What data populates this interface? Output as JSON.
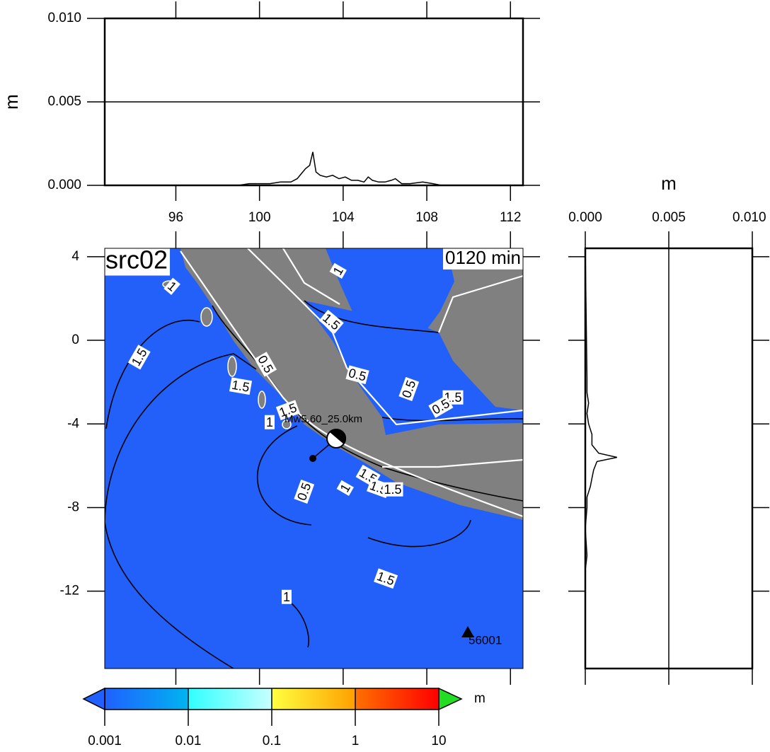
{
  "chart_data": [
    {
      "type": "line",
      "ylabel": "m",
      "xlim": [
        92.6,
        112.6
      ],
      "ylim": [
        0,
        0.01
      ],
      "xticks": [
        96,
        100,
        104,
        108,
        112
      ],
      "yticks": [
        {
          "value": 0,
          "label": "0.000"
        },
        {
          "value": 0.005,
          "label": "0.005"
        },
        {
          "value": 0.01,
          "label": "0.010"
        }
      ],
      "grid": true,
      "x": [
        92.6,
        99,
        99.5,
        100,
        100.5,
        101,
        101.5,
        101.8,
        102,
        102.2,
        102.4,
        102.55,
        102.7,
        102.9,
        103.2,
        103.5,
        103.8,
        104.1,
        104.4,
        104.7,
        105,
        105.2,
        105.4,
        105.7,
        106,
        106.3,
        106.5,
        106.8,
        107.2,
        107.8,
        108.3,
        108.7,
        112.6
      ],
      "series": [
        {
          "color": "#000000",
          "values": [
            0,
            0,
            0.0001,
            0.0001,
            0.0001,
            0.0002,
            0.0002,
            0.0004,
            0.0007,
            0.001,
            0.0012,
            0.002,
            0.0008,
            0.0006,
            0.0005,
            0.0006,
            0.0004,
            0.0005,
            0.0003,
            0.0003,
            0.0002,
            0.0005,
            0.0003,
            0.0002,
            0.0002,
            0.0003,
            0.0004,
            0.0001,
            0.0001,
            0.0002,
            0.0001,
            0,
            0
          ]
        }
      ]
    },
    {
      "type": "map",
      "title": "src02",
      "time": "0120 min",
      "source": "Mw5.60_25.0km",
      "station": "56001",
      "xlim": [
        92.6,
        112.6
      ],
      "ylim": [
        -15.7,
        4.4
      ],
      "xticks": [
        96,
        100,
        104,
        108,
        112
      ],
      "yticks": [
        4,
        0,
        -4,
        -8,
        -12
      ],
      "color": "#2360fa",
      "land_color": "#808080",
      "contour_labels": [
        "1",
        "1.5",
        "0.5",
        "1.5",
        "1.5",
        "1",
        "1",
        "1.5",
        "0.5",
        "0.5",
        "1.5",
        "0.5",
        "0.5",
        "1",
        "1.5",
        "1.5",
        "1.5",
        "1.5",
        "1"
      ]
    },
    {
      "type": "line",
      "orientation": "vertical",
      "xlabel": "m",
      "xlim": [
        0,
        0.01
      ],
      "ylim": [
        -15.7,
        4.4
      ],
      "xticks": [
        {
          "value": 0,
          "label": "0.000"
        },
        {
          "value": 0.005,
          "label": "0.005"
        },
        {
          "value": 0.01,
          "label": "0.010"
        }
      ],
      "yticks": [
        4,
        0,
        -4,
        -8,
        -12
      ],
      "grid": true,
      "y": [
        4.4,
        -1.8,
        -2.5,
        -3,
        -3.5,
        -4,
        -4.5,
        -5,
        -5.4,
        -5.6,
        -5.8,
        -6.2,
        -6.6,
        -7,
        -7.5,
        -8,
        -9,
        -10.3,
        -11,
        -15.7
      ],
      "series": [
        {
          "color": "#000000",
          "values": [
            0,
            0.0001,
            0.0001,
            0.0002,
            0.0001,
            0.0002,
            0.0004,
            0.0004,
            0.0008,
            0.0019,
            0.0007,
            0.0005,
            0.0004,
            0.0003,
            0.0001,
            0.0001,
            0,
            0.0001,
            0,
            0
          ]
        }
      ]
    },
    {
      "type": "colorbar",
      "label": "m",
      "log": true,
      "xlim": [
        0.001,
        10
      ],
      "xticks": [
        0.001,
        0.01,
        0.1,
        1,
        10
      ],
      "colors": [
        "#2060ff",
        "#00b4f0",
        "#30ffff",
        "#c8ffff",
        "#ffff40",
        "#ffa000",
        "#ff7000",
        "#ff0000"
      ],
      "over_color": "#22dd22"
    }
  ]
}
